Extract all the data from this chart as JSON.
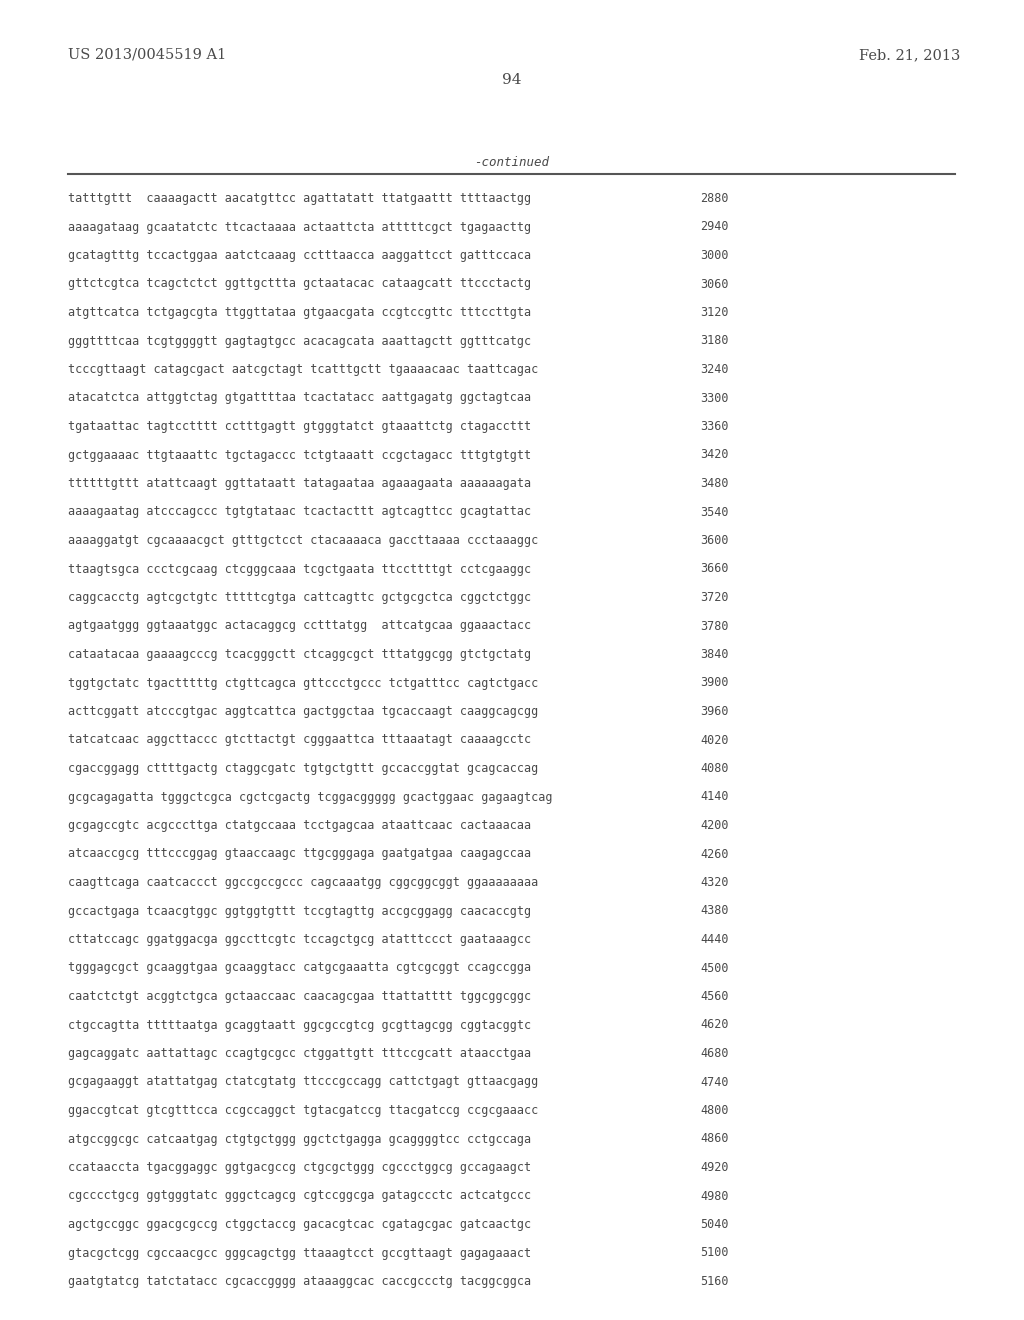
{
  "header_left": "US 2013/0045519 A1",
  "header_right": "Feb. 21, 2013",
  "page_number": "94",
  "continued_label": "-continued",
  "background_color": "#ffffff",
  "text_color": "#4a4a4a",
  "font_size_header": 10.5,
  "font_size_body": 8.5,
  "font_size_page": 11,
  "sequence_lines": [
    [
      "tatttgttt  caaaagactt aacatgttcc agattatatt ttatgaattt ttttaactgg",
      "2880"
    ],
    [
      "aaaagataag gcaatatctc ttcactaaaa actaattcta atttttcgct tgagaacttg",
      "2940"
    ],
    [
      "gcatagtttg tccactggaa aatctcaaag cctttaacca aaggattcct gatttccaca",
      "3000"
    ],
    [
      "gttctcgtca tcagctctct ggttgcttta gctaatacac cataagcatt ttccctactg",
      "3060"
    ],
    [
      "atgttcatca tctgagcgta ttggttataa gtgaacgata ccgtccgttc tttccttgta",
      "3120"
    ],
    [
      "gggttttcaa tcgtggggtt gagtagtgcc acacagcata aaattagctt ggtttcatgc",
      "3180"
    ],
    [
      "tcccgttaagt catagcgact aatcgctagt tcatttgctt tgaaaacaac taattcagac",
      "3240"
    ],
    [
      "atacatctca attggtctag gtgattttaa tcactatacc aattgagatg ggctagtcaa",
      "3300"
    ],
    [
      "tgataattac tagtcctttt cctttgagtt gtgggtatct gtaaattctg ctagaccttt",
      "3360"
    ],
    [
      "gctggaaaac ttgtaaattc tgctagaccc tctgtaaatt ccgctagacc tttgtgtgtt",
      "3420"
    ],
    [
      "ttttttgttt atattcaagt ggttataatt tatagaataa agaaagaata aaaaaagata",
      "3480"
    ],
    [
      "aaaagaatag atcccagccc tgtgtataac tcactacttt agtcagttcc gcagtattac",
      "3540"
    ],
    [
      "aaaaggatgt cgcaaaacgct gtttgctcct ctacaaaaca gaccttaaaa ccctaaaggc",
      "3600"
    ],
    [
      "ttaagtsgca ccctcgcaag ctcgggcaaa tcgctgaata ttccttttgt cctcgaaggc",
      "3660"
    ],
    [
      "caggcacctg agtcgctgtc tttttcgtga cattcagttc gctgcgctca cggctctggc",
      "3720"
    ],
    [
      "agtgaatggg ggtaaatggc actacaggcg cctttatgg  attcatgcaa ggaaactacc",
      "3780"
    ],
    [
      "cataatacaa gaaaagcccg tcacgggctt ctcaggcgct tttatggcgg gtctgctatg",
      "3840"
    ],
    [
      "tggtgctatc tgactttttg ctgttcagca gttccctgccc tctgatttcc cagtctgacc",
      "3900"
    ],
    [
      "acttcggatt atcccgtgac aggtcattca gactggctaa tgcaccaagt caaggcagcgg",
      "3960"
    ],
    [
      "tatcatcaac aggcttaccc gtcttactgt cgggaattca tttaaatagt caaaagcctc",
      "4020"
    ],
    [
      "cgaccggagg cttttgactg ctaggcgatc tgtgctgttt gccaccggtat gcagcaccag",
      "4080"
    ],
    [
      "gcgcagagatta tgggctcgca cgctcgactg tcggacggggg gcactggaac gagaagtcag",
      "4140"
    ],
    [
      "gcgagccgtc acgcccttga ctatgccaaa tcctgagcaa ataattcaac cactaaacaa",
      "4200"
    ],
    [
      "atcaaccgcg tttcccggag gtaaccaagc ttgcgggaga gaatgatgaa caagagccaa",
      "4260"
    ],
    [
      "caagttcaga caatcaccct ggccgccgccc cagcaaatgg cggcggcggt ggaaaaaaaa",
      "4320"
    ],
    [
      "gccactgaga tcaacgtggc ggtggtgttt tccgtagttg accgcggagg caacaccgtg",
      "4380"
    ],
    [
      "cttatccagc ggatggacga ggccttcgtc tccagctgcg atatttccct gaataaagcc",
      "4440"
    ],
    [
      "tgggagcgct gcaaggtgaa gcaaggtacc catgcgaaatta cgtcgcggt ccagccgga",
      "4500"
    ],
    [
      "caatctctgt acggtctgca gctaaccaac caacagcgaa ttattatttt tggcggcggc",
      "4560"
    ],
    [
      "ctgccagtta tttttaatga gcaggtaatt ggcgccgtcg gcgttagcgg cggtacggtc",
      "4620"
    ],
    [
      "gagcaggatc aattattagc ccagtgcgcc ctggattgtt tttccgcatt ataacctgaa",
      "4680"
    ],
    [
      "gcgagaaggt atattatgag ctatcgtatg ttcccgccagg cattctgagt gttaacgagg",
      "4740"
    ],
    [
      "ggaccgtcat gtcgtttcca ccgccaggct tgtacgatccg ttacgatccg ccgcgaaacc",
      "4800"
    ],
    [
      "atgccggcgc catcaatgag ctgtgctggg ggctctgagga gcaggggtcc cctgccaga",
      "4860"
    ],
    [
      "ccataaccta tgacggaggc ggtgacgccg ctgcgctggg cgccctggcg gccagaagct",
      "4920"
    ],
    [
      "cgcccctgcg ggtgggtatc gggctcagcg cgtccggcga gatagccctc actcatgccc",
      "4980"
    ],
    [
      "agctgccggc ggacgcgccg ctggctaccg gacacgtcac cgatagcgac gatcaactgc",
      "5040"
    ],
    [
      "gtacgctcgg cgccaacgcc gggcagctgg ttaaagtcct gccgttaagt gagagaaact",
      "5100"
    ],
    [
      "gaatgtatcg tatctatacc cgcaccgggg ataaaggcac caccgccctg tacggcggca",
      "5160"
    ]
  ]
}
